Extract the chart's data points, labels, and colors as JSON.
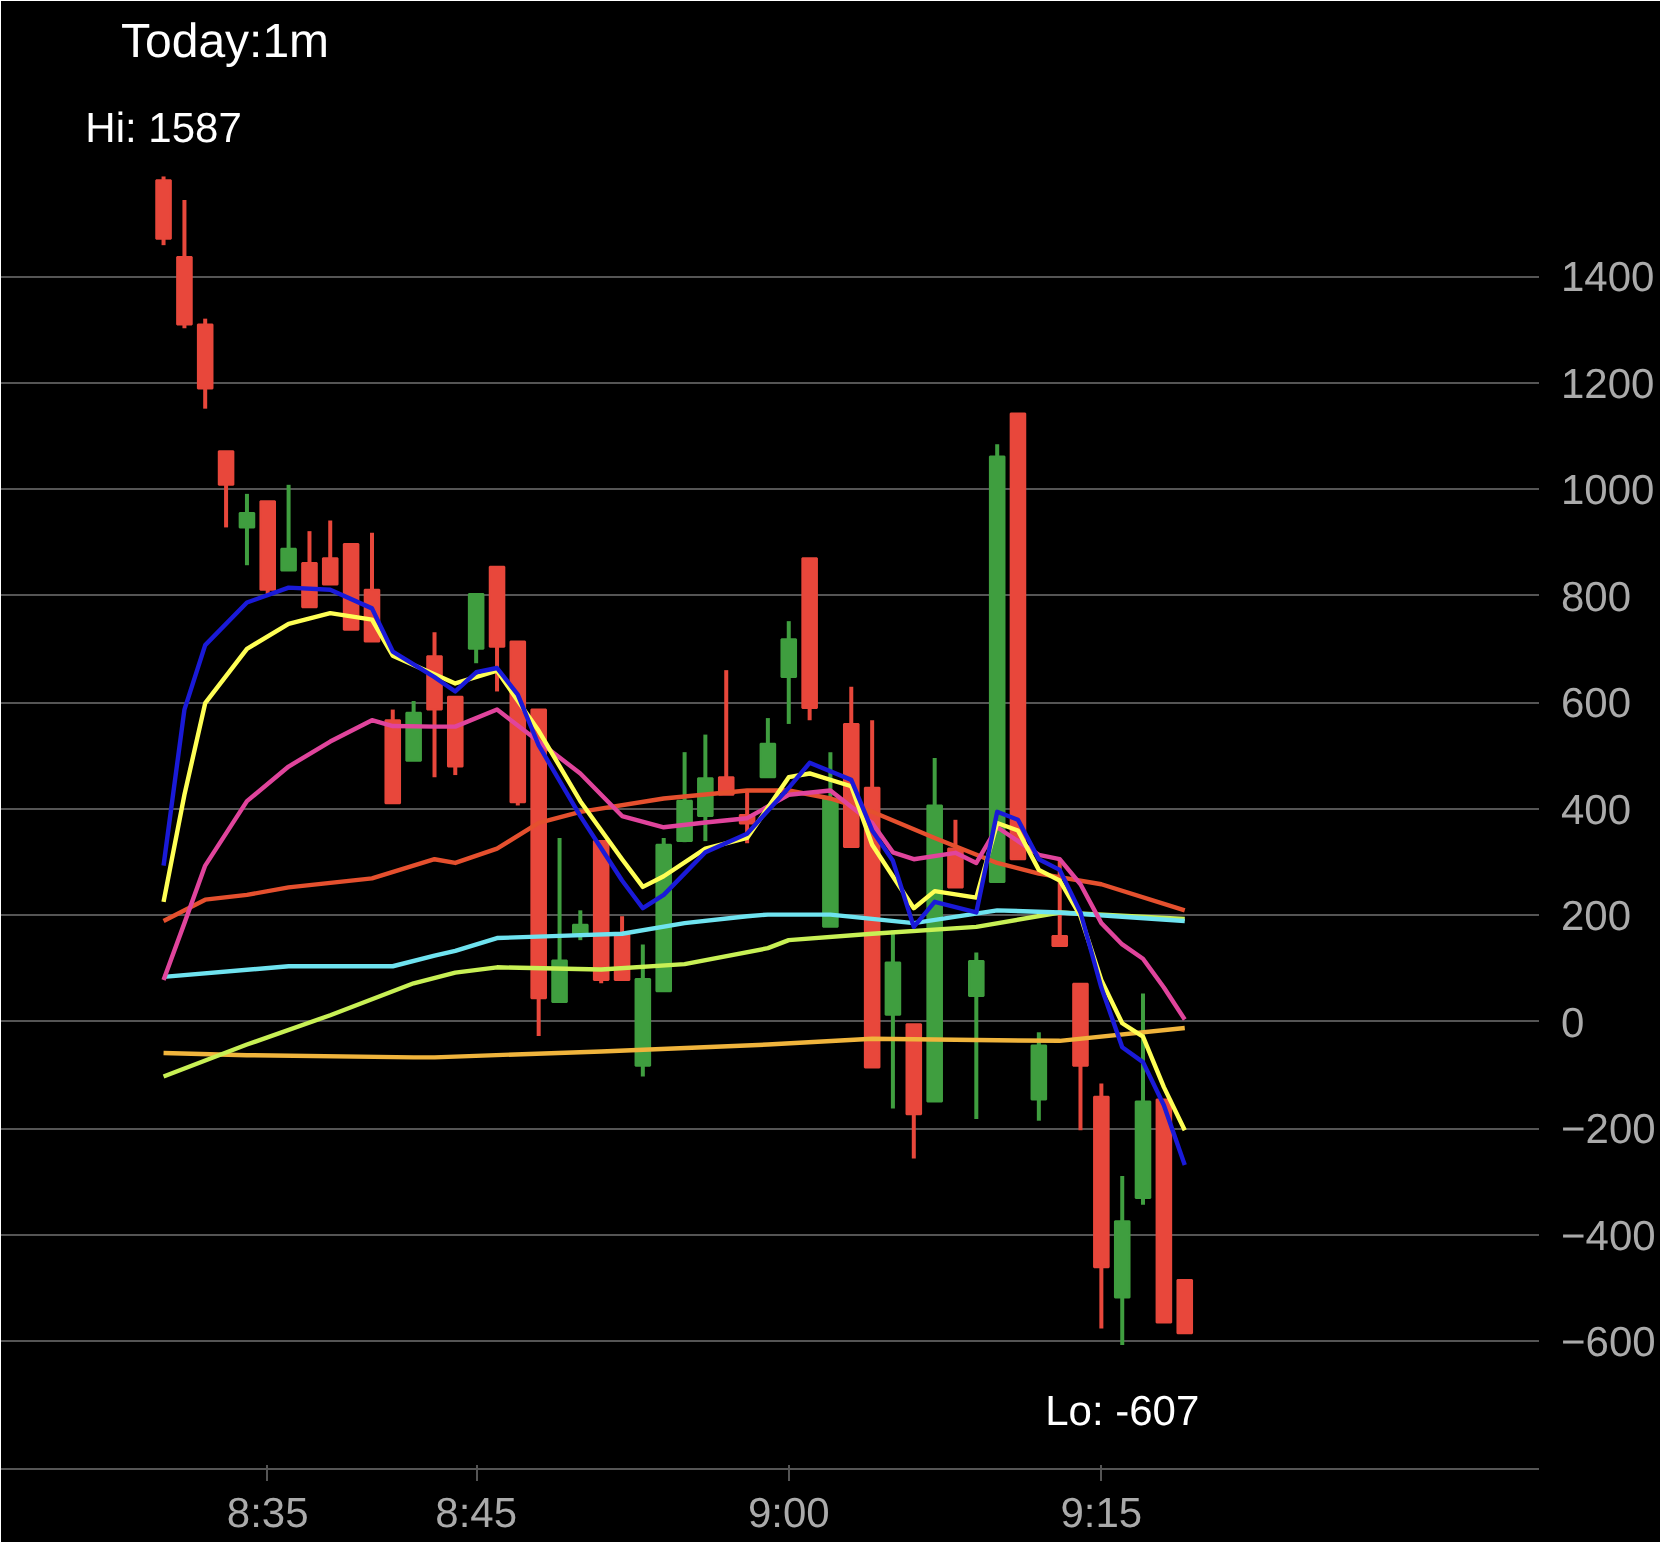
{
  "chart_data": {
    "type": "candlestick",
    "title": "Today:1m",
    "x": [
      8.5,
      8.5167,
      8.5333,
      8.55,
      8.5667,
      8.5833,
      8.6,
      8.6167,
      8.6333,
      8.65,
      8.6667,
      8.6833,
      8.7,
      8.7167,
      8.7333,
      8.75,
      8.7667,
      8.7833,
      8.8,
      8.8167,
      8.8333,
      8.85,
      8.8667,
      8.8833,
      8.9,
      8.9167,
      8.9333,
      8.95,
      8.9667,
      8.9833,
      9.0,
      9.0167,
      9.0333,
      9.05,
      9.0667,
      9.0833,
      9.1,
      9.1167,
      9.1333,
      9.15,
      9.1667,
      9.1833,
      9.2,
      9.2167,
      9.2333,
      9.25,
      9.2667,
      9.2833,
      9.3,
      9.3167
    ],
    "ohlc": [
      [
        1580,
        1587,
        1458,
        1470
      ],
      [
        1436,
        1543,
        1302,
        1309
      ],
      [
        1309,
        1320,
        1151,
        1189
      ],
      [
        1071,
        1071,
        928,
        1008
      ],
      [
        928,
        991,
        857,
        955
      ],
      [
        977,
        977,
        803,
        811
      ],
      [
        847,
        1008,
        847,
        888
      ],
      [
        861,
        921,
        778,
        778
      ],
      [
        870,
        941,
        821,
        821
      ],
      [
        897,
        897,
        736,
        736
      ],
      [
        811,
        918,
        714,
        714
      ],
      [
        566,
        586,
        410,
        410
      ],
      [
        490,
        602,
        490,
        580
      ],
      [
        686,
        731,
        459,
        586
      ],
      [
        610,
        610,
        463,
        479
      ],
      [
        700,
        803,
        673,
        803
      ],
      [
        854,
        854,
        620,
        704
      ],
      [
        714,
        714,
        406,
        412
      ],
      [
        586,
        586,
        -27,
        44
      ],
      [
        37,
        345,
        37,
        115
      ],
      [
        165,
        209,
        153,
        182
      ],
      [
        339,
        339,
        72,
        78
      ],
      [
        165,
        198,
        78,
        78
      ],
      [
        -83,
        145,
        -103,
        80
      ],
      [
        57,
        345,
        57,
        332
      ],
      [
        339,
        506,
        337,
        415
      ],
      [
        386,
        539,
        339,
        457
      ],
      [
        459,
        660,
        426,
        426
      ],
      [
        388,
        432,
        335,
        372
      ],
      [
        459,
        570,
        459,
        522
      ],
      [
        647,
        752,
        559,
        718
      ],
      [
        870,
        870,
        566,
        589
      ],
      [
        178,
        506,
        178,
        419
      ],
      [
        559,
        629,
        328,
        328
      ],
      [
        439,
        566,
        -86,
        -86
      ],
      [
        13,
        171,
        -163,
        111
      ],
      [
        -5,
        -5,
        -257,
        -174
      ],
      [
        -150,
        495,
        -150,
        406
      ],
      [
        325,
        379,
        252,
        252
      ],
      [
        48,
        130,
        -183,
        114
      ],
      [
        262,
        1084,
        262,
        1061
      ],
      [
        1142,
        1142,
        305,
        305
      ],
      [
        -146,
        -20,
        -186,
        -45
      ],
      [
        161,
        305,
        142,
        142
      ],
      [
        71,
        71,
        -204,
        -83
      ],
      [
        -141,
        -116,
        -576,
        -461
      ],
      [
        -518,
        -290,
        -607,
        -375
      ],
      [
        -331,
        53,
        -344,
        -150
      ],
      [
        -146,
        -146,
        -565,
        -565
      ],
      [
        -485,
        -485,
        -585,
        -585
      ]
    ],
    "colors": [
      "#e8473b",
      "#e8473b",
      "#e8473b",
      "#e8473b",
      "#3f9e3f",
      "#e8473b",
      "#3f9e3f",
      "#e8473b",
      "#e8473b",
      "#e8473b",
      "#e8473b",
      "#e8473b",
      "#3f9e3f",
      "#e8473b",
      "#e8473b",
      "#3f9e3f",
      "#e8473b",
      "#e8473b",
      "#e8473b",
      "#3f9e3f",
      "#3f9e3f",
      "#e8473b",
      "#e8473b",
      "#3f9e3f",
      "#3f9e3f",
      "#3f9e3f",
      "#3f9e3f",
      "#e8473b",
      "#e8473b",
      "#3f9e3f",
      "#3f9e3f",
      "#e8473b",
      "#3f9e3f",
      "#e8473b",
      "#e8473b",
      "#3f9e3f",
      "#e8473b",
      "#3f9e3f",
      "#e8473b",
      "#3f9e3f",
      "#3f9e3f",
      "#e8473b",
      "#3f9e3f",
      "#e8473b",
      "#e8473b",
      "#e8473b",
      "#3f9e3f",
      "#3f9e3f",
      "#e8473b",
      "#e8473b"
    ],
    "series": [
      {
        "type": "line",
        "color": "#f0b43c",
        "x": [
          8.5,
          8.5667,
          8.7,
          8.7167,
          8.85,
          8.9833,
          9.0667,
          9.1667,
          9.2167,
          9.3167
        ],
        "values": [
          -59,
          -63,
          -67,
          -67,
          -56,
          -43,
          -32,
          -35,
          -36,
          -12
        ]
      },
      {
        "type": "line",
        "color": "#c8f055",
        "x": [
          8.5,
          8.5667,
          8.6333,
          8.7,
          8.7333,
          8.7667,
          8.85,
          8.9167,
          8.9833,
          9.0,
          9.0667,
          9.15,
          9.2167,
          9.3167
        ],
        "values": [
          -103,
          -43,
          12,
          72,
          92,
          102,
          98,
          108,
          138,
          153,
          165,
          178,
          205,
          193
        ]
      },
      {
        "type": "line",
        "color": "#6fe3f0",
        "x": [
          8.5,
          8.6,
          8.6833,
          8.7167,
          8.7333,
          8.7667,
          8.8167,
          8.8667,
          8.9167,
          8.9667,
          8.9833,
          9.0333,
          9.1,
          9.1667,
          9.2167,
          9.3167
        ],
        "values": [
          84,
          104,
          104,
          124,
          133,
          157,
          161,
          165,
          185,
          198,
          201,
          201,
          185,
          209,
          205,
          189
        ]
      },
      {
        "type": "line",
        "color": "#e5502e",
        "x": [
          8.5,
          8.5333,
          8.5667,
          8.6,
          8.6667,
          8.7167,
          8.7333,
          8.7667,
          8.8,
          8.8333,
          8.9,
          8.9667,
          9.0,
          9.0333,
          9.0667,
          9.1167,
          9.1667,
          9.2,
          9.25,
          9.3167
        ],
        "values": [
          189,
          229,
          238,
          252,
          269,
          305,
          298,
          325,
          373,
          394,
          419,
          434,
          434,
          419,
          394,
          345,
          298,
          278,
          258,
          209
        ]
      },
      {
        "type": "line",
        "color": "#e0449c",
        "x": [
          8.5,
          8.5167,
          8.5333,
          8.5667,
          8.6,
          8.6333,
          8.6667,
          8.6833,
          8.7167,
          8.7333,
          8.7667,
          8.8,
          8.8333,
          8.8667,
          8.9,
          8.9333,
          8.9667,
          9.0,
          9.0333,
          9.0667,
          9.0833,
          9.1,
          9.1333,
          9.15,
          9.1667,
          9.2,
          9.2167,
          9.2333,
          9.25,
          9.2667,
          9.2833,
          9.3,
          9.3167
        ],
        "values": [
          78,
          185,
          293,
          414,
          479,
          526,
          566,
          555,
          554,
          554,
          586,
          526,
          466,
          386,
          365,
          374,
          382,
          426,
          434,
          373,
          318,
          305,
          317,
          298,
          365,
          313,
          305,
          258,
          185,
          145,
          118,
          64,
          4
        ]
      },
      {
        "type": "line",
        "color": "#ffff55",
        "x": [
          8.5,
          8.5167,
          8.5333,
          8.5667,
          8.6,
          8.6333,
          8.6667,
          8.6833,
          8.7333,
          8.7667,
          8.8,
          8.8333,
          8.8667,
          8.8833,
          8.9,
          8.9333,
          8.9667,
          9.0,
          9.0167,
          9.05,
          9.0667,
          9.1,
          9.1167,
          9.15,
          9.1667,
          9.1833,
          9.2,
          9.2167,
          9.2333,
          9.25,
          9.2667,
          9.2833,
          9.3,
          9.3167
        ],
        "values": [
          225,
          426,
          598,
          700,
          747,
          767,
          755,
          687,
          635,
          659,
          546,
          414,
          305,
          253,
          273,
          325,
          345,
          459,
          466,
          442,
          332,
          213,
          245,
          233,
          373,
          359,
          285,
          265,
          198,
          78,
          -3,
          -28,
          -123,
          -204
        ]
      },
      {
        "type": "line",
        "color": "#1a1ad8",
        "x": [
          8.5,
          8.5167,
          8.5333,
          8.5667,
          8.6,
          8.6333,
          8.6667,
          8.6833,
          8.7167,
          8.7333,
          8.75,
          8.7667,
          8.7833,
          8.8,
          8.8333,
          8.8667,
          8.8833,
          8.9,
          8.9333,
          8.9667,
          9.0,
          9.0167,
          9.05,
          9.0667,
          9.0833,
          9.1,
          9.1167,
          9.15,
          9.1667,
          9.1833,
          9.2,
          9.2167,
          9.2333,
          9.25,
          9.2667,
          9.2833,
          9.3,
          9.3167
        ],
        "values": [
          293,
          586,
          707,
          787,
          815,
          811,
          776,
          695,
          647,
          620,
          656,
          664,
          614,
          519,
          386,
          265,
          213,
          238,
          318,
          353,
          439,
          486,
          454,
          359,
          302,
          178,
          225,
          205,
          394,
          379,
          305,
          285,
          205,
          64,
          -48,
          -76,
          -157,
          -269
        ]
      }
    ],
    "annotations": [
      {
        "text": "Hi: 1587",
        "x": 8.5,
        "y": 1587
      },
      {
        "text": "Lo: -607",
        "x": 9.2667,
        "y": -607
      }
    ],
    "xlim": [
      8.37,
      9.6
    ],
    "ylim": [
      -840,
      1770
    ],
    "xticks": [
      {
        "value": 8.5833,
        "label": "8:35"
      },
      {
        "value": 8.75,
        "label": "8:45"
      },
      {
        "value": 9.0,
        "label": "9:00"
      },
      {
        "value": 9.25,
        "label": "9:15"
      }
    ],
    "yticks": [
      -600,
      -400,
      -200,
      0,
      200,
      400,
      600,
      800,
      1000,
      1200,
      1400
    ],
    "grid": "y"
  }
}
